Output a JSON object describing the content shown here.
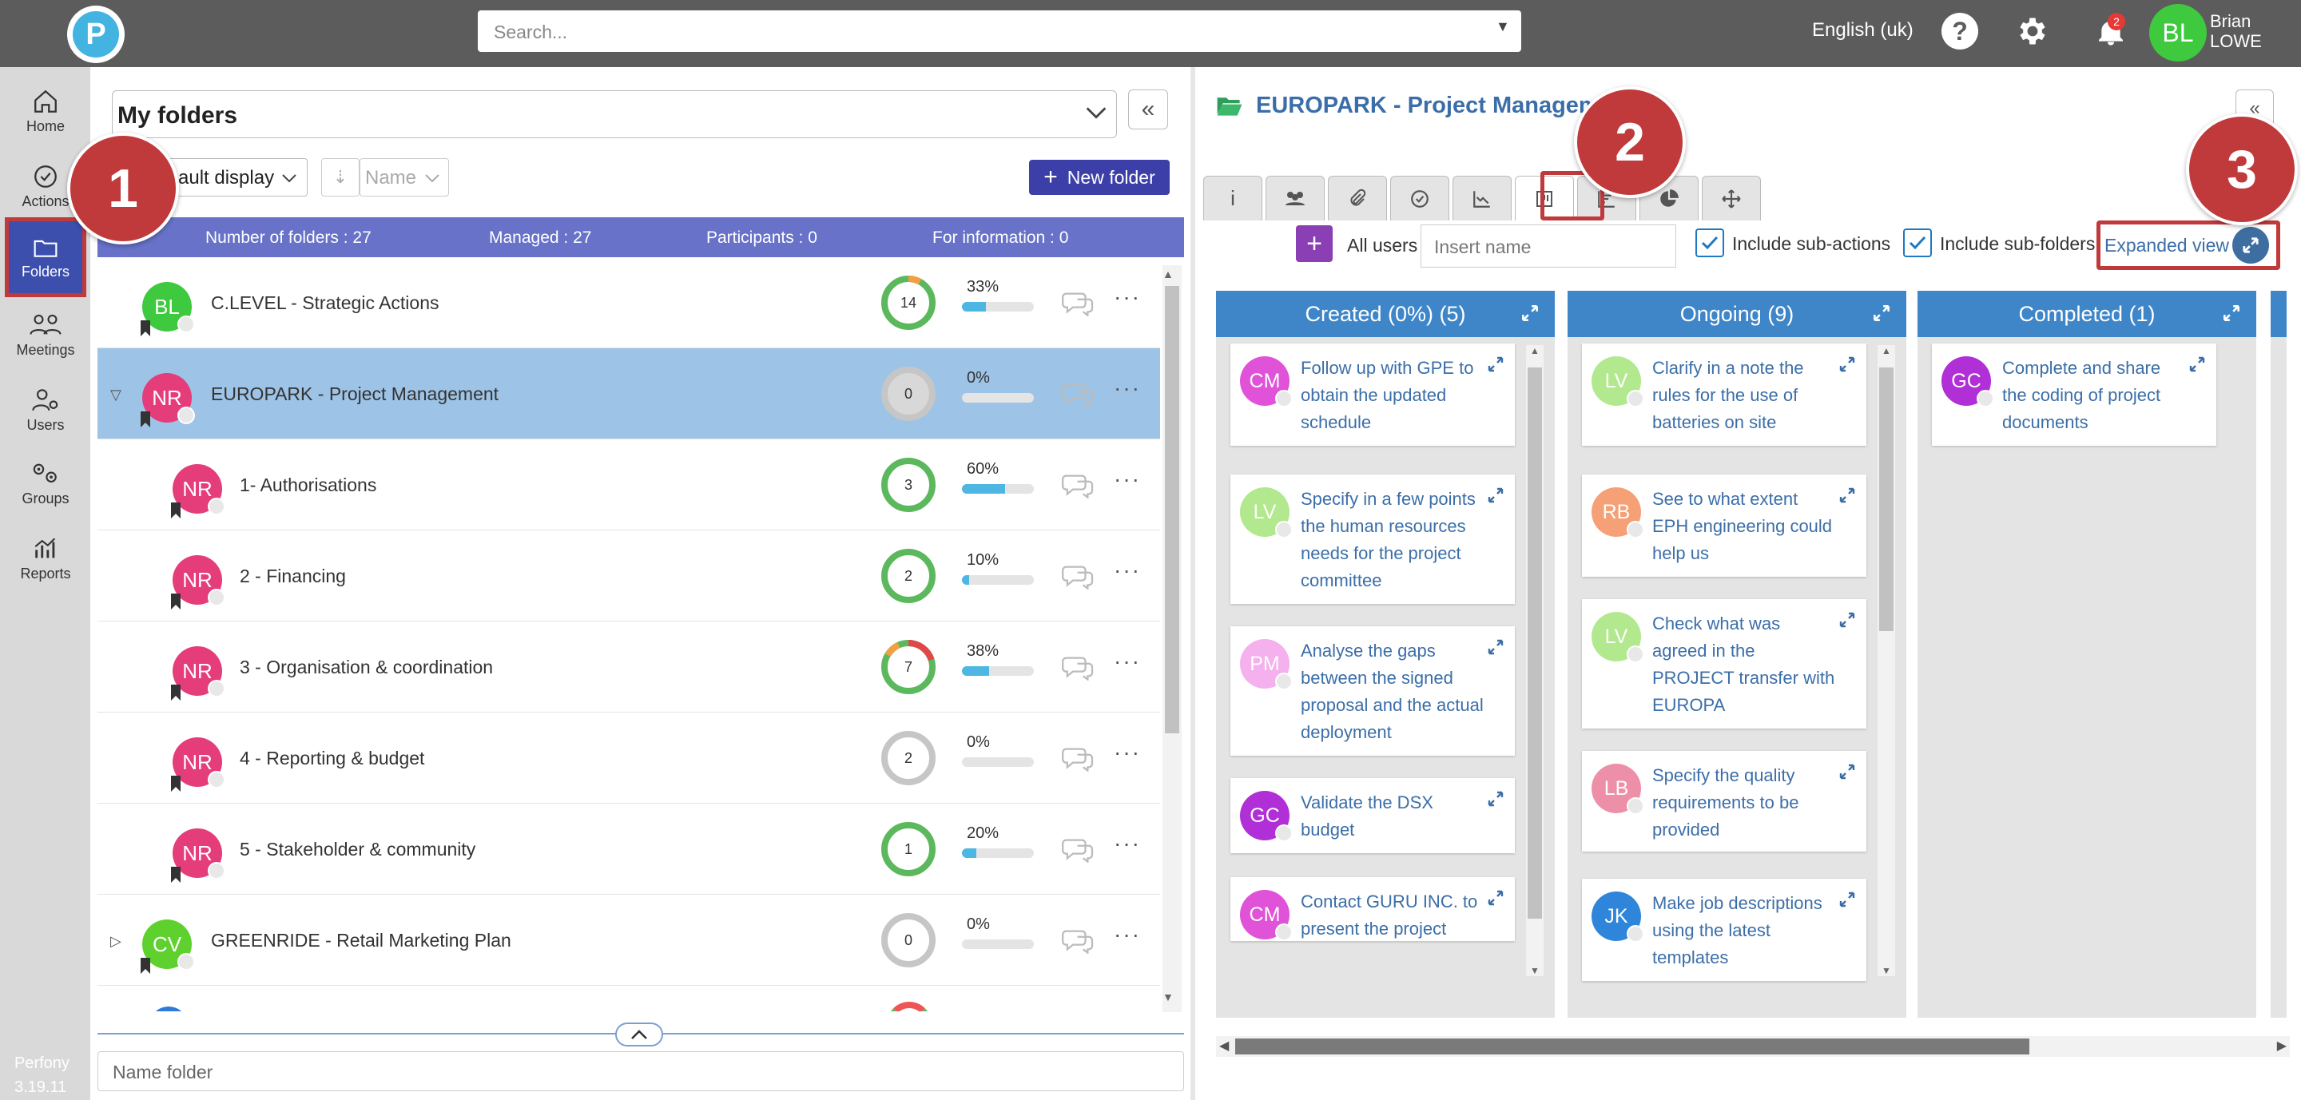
{
  "topbar": {
    "logo_letter": "P",
    "search_placeholder": "Search...",
    "language": "English (uk)",
    "help_label": "?",
    "notifications_count": "2",
    "user_initials": "BL",
    "user_first": "Brian",
    "user_last": "LOWE"
  },
  "nav": {
    "items": [
      {
        "label": "Home",
        "icon": "home-icon"
      },
      {
        "label": "Actions",
        "icon": "check-circle-icon"
      },
      {
        "label": "Folders",
        "icon": "folder-icon"
      },
      {
        "label": "Meetings",
        "icon": "people-icon"
      },
      {
        "label": "Users",
        "icon": "user-gear-icon"
      },
      {
        "label": "Groups",
        "icon": "groups-gear-icon"
      },
      {
        "label": "Reports",
        "icon": "chart-icon"
      }
    ],
    "product": "Perfony",
    "version": "3.19.11"
  },
  "folders": {
    "selector": "My folders",
    "collapse_label": "«",
    "display": "ault display",
    "sort": "Name",
    "new_folder": "New folder",
    "stats": {
      "count": "Number of folders : 27",
      "managed": "Managed : 27",
      "participants": "Participants : 0",
      "information": "For information : 0"
    },
    "rows": [
      {
        "initials": "BL",
        "color": "#3ec93e",
        "name": "C.LEVEL - Strategic Actions",
        "actions": "14",
        "percent": "33%",
        "progress": 0.33
      },
      {
        "initials": "NR",
        "color": "#e53c7a",
        "name": "EUROPARK - Project Management",
        "actions": "0",
        "percent": "0%",
        "progress": 0
      },
      {
        "initials": "NR",
        "color": "#e53c7a",
        "name": "1- Authorisations",
        "actions": "3",
        "percent": "60%",
        "progress": 0.6
      },
      {
        "initials": "NR",
        "color": "#e53c7a",
        "name": "2 - Financing",
        "actions": "2",
        "percent": "10%",
        "progress": 0.1
      },
      {
        "initials": "NR",
        "color": "#e53c7a",
        "name": "3 - Organisation & coordination",
        "actions": "7",
        "percent": "38%",
        "progress": 0.38
      },
      {
        "initials": "NR",
        "color": "#e53c7a",
        "name": "4 - Reporting & budget",
        "actions": "2",
        "percent": "0%",
        "progress": 0
      },
      {
        "initials": "NR",
        "color": "#e53c7a",
        "name": "5 - Stakeholder & community",
        "actions": "1",
        "percent": "20%",
        "progress": 0.2
      },
      {
        "initials": "CV",
        "color": "#5fd12e",
        "name": "GREENRIDE - Retail Marketing Plan",
        "actions": "0",
        "percent": "0%",
        "progress": 0
      }
    ],
    "name_folder_placeholder": "Name folder"
  },
  "project": {
    "title": "EUROPARK - Project Managem",
    "collapse_label": "«",
    "tabs": [
      {
        "icon": "info-icon",
        "glyph": "i"
      },
      {
        "icon": "team-icon",
        "glyph": ""
      },
      {
        "icon": "paperclip-icon",
        "glyph": ""
      },
      {
        "icon": "check-icon",
        "glyph": ""
      },
      {
        "icon": "line-chart-icon",
        "glyph": ""
      },
      {
        "icon": "kanban-icon",
        "glyph": ""
      },
      {
        "icon": "trend-icon",
        "glyph": ""
      },
      {
        "icon": "pie-icon",
        "glyph": ""
      },
      {
        "icon": "move-icon",
        "glyph": ""
      }
    ],
    "add_label": "+",
    "all_users": "All users",
    "insert_name_placeholder": "Insert name",
    "include_sub_actions": "Include sub-actions",
    "include_sub_folders": "Include sub-folders",
    "expanded_view": "Expanded view"
  },
  "kanban": {
    "columns": [
      {
        "title": "Created (0%) (5)",
        "cards": [
          {
            "initials": "CM",
            "color": "#e052d8",
            "text": "Follow up with GPE to obtain the updated schedule"
          },
          {
            "initials": "LV",
            "color": "#b2e88e",
            "text": "Specify in a few points the human resources needs for the project committee"
          },
          {
            "initials": "PM",
            "color": "#f5b0ee",
            "text": "Analyse the gaps between the signed proposal and the actual deployment"
          },
          {
            "initials": "GC",
            "color": "#b02fd6",
            "text": "Validate the DSX budget"
          },
          {
            "initials": "CM",
            "color": "#e052d8",
            "text": "Contact GURU INC. to present the project"
          }
        ]
      },
      {
        "title": "Ongoing (9)",
        "cards": [
          {
            "initials": "LV",
            "color": "#b2e88e",
            "text": "Clarify in a note the rules for the use of batteries on site"
          },
          {
            "initials": "RB",
            "color": "#f5a077",
            "text": "See to what extent EPH engineering could help us"
          },
          {
            "initials": "LV",
            "color": "#b2e88e",
            "text": "Check what was agreed in the PROJECT transfer with EUROPA"
          },
          {
            "initials": "LB",
            "color": "#ee8fa8",
            "text": "Specify the quality requirements to be provided"
          },
          {
            "initials": "JK",
            "color": "#2f85d9",
            "text": "Make job descriptions using the latest templates"
          }
        ]
      },
      {
        "title": "Completed (1)",
        "cards": [
          {
            "initials": "GC",
            "color": "#b02fd6",
            "text": "Complete and share the coding of project documents"
          }
        ]
      }
    ]
  },
  "callouts": [
    "1",
    "2",
    "3"
  ],
  "colors": {
    "accent": "#3d3fa8",
    "highlight": "#c0393b",
    "column_header": "#3f86c9"
  }
}
